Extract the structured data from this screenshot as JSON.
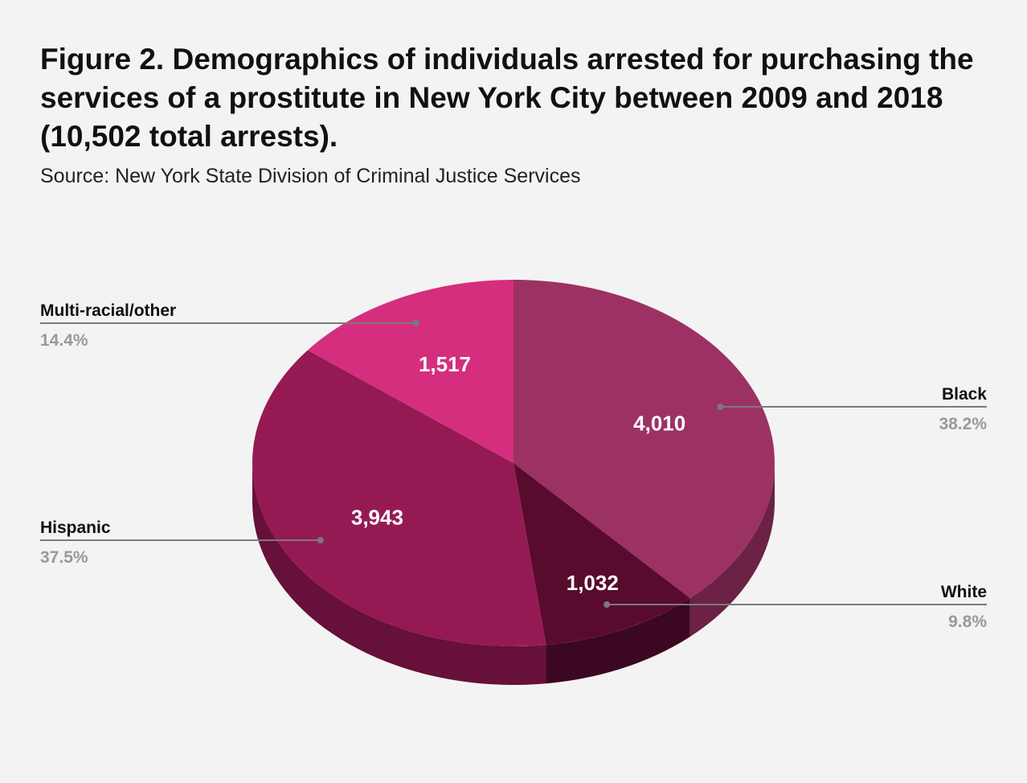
{
  "header": {
    "title": "Figure 2. Demographics of individuals arrested for purchasing the services of a prostitute in New York City between 2009 and 2018 (10,502 total arrests).",
    "subtitle": "Source: New York State Division of Criminal Justice Services"
  },
  "chart_data": {
    "type": "pie",
    "title": "Figure 2. Demographics of individuals arrested for purchasing the services of a prostitute in New York City between 2009 and 2018 (10,502 total arrests).",
    "subtitle": "Source: New York State Division of Criminal Justice Services",
    "three_d": true,
    "slices": [
      {
        "name": "Black",
        "value": 4010,
        "value_label": "4,010",
        "percent_label": "38.2%",
        "color": "#9c3263",
        "side_color": "#6b2244",
        "legend_side": "right"
      },
      {
        "name": "White",
        "value": 1032,
        "value_label": "1,032",
        "percent_label": "9.8%",
        "color": "#590b2e",
        "side_color": "#3c0720",
        "legend_side": "right"
      },
      {
        "name": "Hispanic",
        "value": 3943,
        "value_label": "3,943",
        "percent_label": "37.5%",
        "color": "#951a54",
        "side_color": "#66103a",
        "legend_side": "left"
      },
      {
        "name": "Multi-racial/other",
        "value": 1517,
        "value_label": "1,517",
        "percent_label": "14.4%",
        "color": "#d52e7e",
        "side_color": "#9b1f5b",
        "legend_side": "left"
      }
    ],
    "colors": {
      "background": "#f3f3f3",
      "leader_line": "#7a7a7a",
      "percent_text": "#999999",
      "value_text": "#ffffff",
      "name_text": "#111111"
    }
  }
}
